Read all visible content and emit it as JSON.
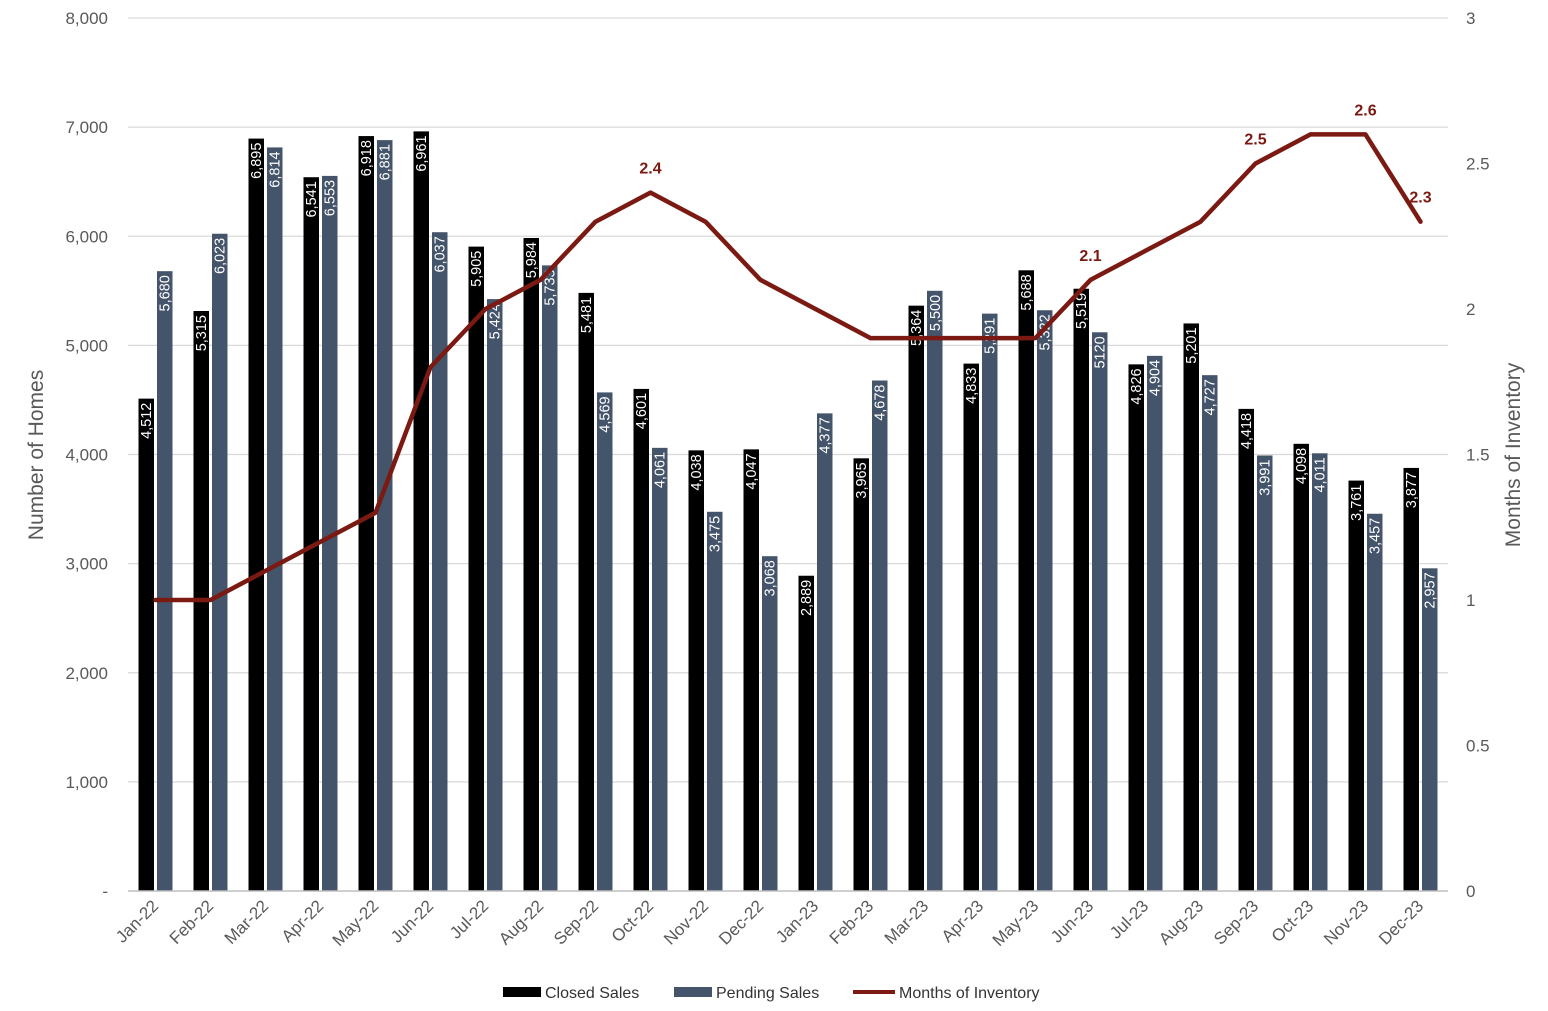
{
  "chart_data": {
    "type": "bar",
    "categories": [
      "Jan-22",
      "Feb-22",
      "Mar-22",
      "Apr-22",
      "May-22",
      "Jun-22",
      "Jul-22",
      "Aug-22",
      "Sep-22",
      "Oct-22",
      "Nov-22",
      "Dec-22",
      "Jan-23",
      "Feb-23",
      "Mar-23",
      "Apr-23",
      "May-23",
      "Jun-23",
      "Jul-23",
      "Aug-23",
      "Sep-23",
      "Oct-23",
      "Nov-23",
      "Dec-23"
    ],
    "series": [
      {
        "name": "Closed Sales",
        "type": "bar",
        "axis": "left",
        "color": "#000000",
        "values": [
          4512,
          5315,
          6895,
          6541,
          6918,
          6961,
          5905,
          5984,
          5481,
          4601,
          4038,
          4047,
          2889,
          3965,
          5364,
          4833,
          5688,
          5519,
          4826,
          5201,
          4418,
          4098,
          3761,
          3877
        ],
        "labels": [
          "4,512",
          "5,315",
          "6,895",
          "6,541",
          "6,918",
          "6,961",
          "5,905",
          "5,984",
          "5,481",
          "4,601",
          "4,038",
          "4,047",
          "2,889",
          "3,965",
          "5,364",
          "4,833",
          "5,688",
          "5,519",
          "4,826",
          "5,201",
          "4,418",
          "4,098",
          "3,761",
          "3,877"
        ]
      },
      {
        "name": "Pending Sales",
        "type": "bar",
        "axis": "left",
        "color": "#44546a",
        "values": [
          5680,
          6023,
          6814,
          6553,
          6881,
          6037,
          5424,
          5733,
          4569,
          4061,
          3475,
          3068,
          4377,
          4678,
          5500,
          5291,
          5322,
          5120,
          4904,
          4727,
          3991,
          4011,
          3457,
          2957
        ],
        "labels": [
          "5,680",
          "6,023",
          "6,814",
          "6,553",
          "6,881",
          "6,037",
          "5,424",
          "5,733",
          "4,569",
          "4,061",
          "3,475",
          "3,068",
          "4,377",
          "4,678",
          "5,500",
          "5,291",
          "5,322",
          "5120",
          "4,904",
          "4,727",
          "3,991",
          "4,011",
          "3,457",
          "2,957"
        ]
      },
      {
        "name": "Months of Inventory",
        "type": "line",
        "axis": "right",
        "color": "#7b1a12",
        "values": [
          1.0,
          1.0,
          1.1,
          1.2,
          1.3,
          1.8,
          2.0,
          2.1,
          2.3,
          2.4,
          2.3,
          2.1,
          2.0,
          1.9,
          1.9,
          1.9,
          1.9,
          2.1,
          2.2,
          2.3,
          2.5,
          2.6,
          2.6,
          2.3
        ],
        "point_labels": [
          {
            "index": 9,
            "text": "2.4"
          },
          {
            "index": 17,
            "text": "2.1"
          },
          {
            "index": 20,
            "text": "2.5"
          },
          {
            "index": 22,
            "text": "2.6"
          },
          {
            "index": 23,
            "text": "2.3"
          }
        ]
      }
    ],
    "y_left": {
      "label": "Number of Homes",
      "range": [
        0,
        8000
      ],
      "ticks": [
        0,
        1000,
        2000,
        3000,
        4000,
        5000,
        6000,
        7000,
        8000
      ],
      "tick_labels": [
        "-",
        "1,000",
        "2,000",
        "3,000",
        "4,000",
        "5,000",
        "6,000",
        "7,000",
        "8,000"
      ]
    },
    "y_right": {
      "label": "Months of Inventory",
      "range": [
        0,
        3
      ],
      "ticks": [
        0,
        0.5,
        1,
        1.5,
        2,
        2.5,
        3
      ],
      "tick_labels": [
        "0",
        "0.5",
        "1",
        "1.5",
        "2",
        "2.5",
        "3"
      ]
    },
    "grid": true,
    "legend": {
      "position": "bottom",
      "items": [
        "Closed Sales",
        "Pending Sales",
        "Months of Inventory"
      ]
    }
  }
}
